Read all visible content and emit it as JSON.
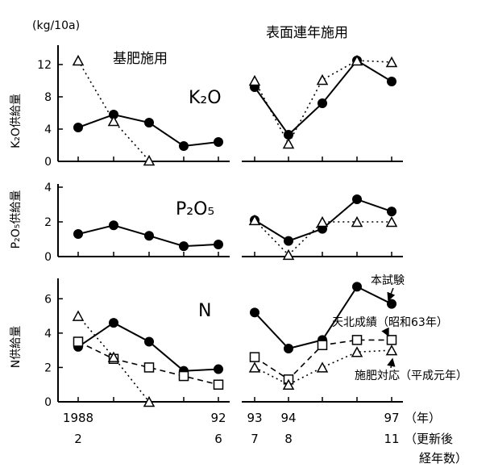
{
  "chart_data": [
    {
      "type": "line",
      "panel_label": "K₂O",
      "ylabel": "K₂O供給量",
      "unit": "(kg/10a)",
      "ylim": [
        0,
        14
      ],
      "yticks": [
        0,
        4,
        8,
        12
      ],
      "x_groups": [
        "基肥施用",
        "表面連年施用"
      ],
      "series": [
        {
          "marker": "filled-circle",
          "line": "solid",
          "segments": [
            [
              [
                1988,
                4.2
              ],
              [
                1989,
                5.8
              ],
              [
                1990,
                4.8
              ],
              [
                1991,
                1.9
              ],
              [
                1992,
                2.4
              ]
            ],
            [
              [
                1993,
                9.2
              ],
              [
                1994,
                3.3
              ],
              [
                1995,
                7.2
              ],
              [
                1996,
                12.5
              ],
              [
                1997,
                9.9
              ]
            ]
          ]
        },
        {
          "marker": "open-triangle",
          "line": "dotted",
          "segments": [
            [
              [
                1988,
                12.5
              ],
              [
                1989,
                5.0
              ],
              [
                1990,
                0.1
              ]
            ],
            [
              [
                1993,
                10.0
              ],
              [
                1994,
                2.2
              ],
              [
                1995,
                10.1
              ],
              [
                1996,
                12.5
              ],
              [
                1997,
                12.3
              ]
            ]
          ]
        }
      ]
    },
    {
      "type": "line",
      "panel_label": "P₂O₅",
      "ylabel": "P₂O₅供給量",
      "ylim": [
        0,
        4
      ],
      "yticks": [
        0,
        2,
        4
      ],
      "series": [
        {
          "marker": "filled-circle",
          "line": "solid",
          "segments": [
            [
              [
                1988,
                1.3
              ],
              [
                1989,
                1.8
              ],
              [
                1990,
                1.2
              ],
              [
                1991,
                0.6
              ],
              [
                1992,
                0.7
              ]
            ],
            [
              [
                1993,
                2.1
              ],
              [
                1994,
                0.9
              ],
              [
                1995,
                1.6
              ],
              [
                1996,
                3.3
              ],
              [
                1997,
                2.6
              ]
            ]
          ]
        },
        {
          "marker": "open-triangle",
          "line": "dotted",
          "segments": [
            [
              [
                1993,
                2.1
              ],
              [
                1994,
                0.1
              ],
              [
                1995,
                2.0
              ],
              [
                1996,
                2.0
              ],
              [
                1997,
                2.0
              ]
            ]
          ]
        }
      ]
    },
    {
      "type": "line",
      "panel_label": "N",
      "ylabel": "N供給量",
      "ylim": [
        0,
        7
      ],
      "yticks": [
        0,
        2,
        4,
        6
      ],
      "series": [
        {
          "name": "本試験",
          "marker": "filled-circle",
          "line": "solid",
          "segments": [
            [
              [
                1988,
                3.2
              ],
              [
                1989,
                4.6
              ],
              [
                1990,
                3.5
              ],
              [
                1991,
                1.8
              ],
              [
                1992,
                1.9
              ]
            ],
            [
              [
                1993,
                5.2
              ],
              [
                1994,
                3.1
              ],
              [
                1995,
                3.6
              ],
              [
                1996,
                6.7
              ],
              [
                1997,
                5.7
              ]
            ]
          ]
        },
        {
          "name": "天北成績（昭和63年）",
          "marker": "open-square",
          "line": "dashed",
          "segments": [
            [
              [
                1988,
                3.5
              ],
              [
                1989,
                2.5
              ],
              [
                1990,
                2.0
              ],
              [
                1991,
                1.5
              ],
              [
                1992,
                1.0
              ]
            ],
            [
              [
                1993,
                2.6
              ],
              [
                1994,
                1.3
              ],
              [
                1995,
                3.3
              ],
              [
                1996,
                3.6
              ],
              [
                1997,
                3.6
              ]
            ]
          ]
        },
        {
          "name": "施肥対応（平成元年）",
          "marker": "open-triangle",
          "line": "dotted",
          "segments": [
            [
              [
                1988,
                5.0
              ],
              [
                1989,
                2.6
              ],
              [
                1990,
                0.0
              ]
            ],
            [
              [
                1993,
                2.0
              ],
              [
                1994,
                1.0
              ],
              [
                1995,
                2.0
              ],
              [
                1996,
                2.9
              ],
              [
                1997,
                3.0
              ]
            ]
          ]
        }
      ]
    }
  ],
  "x_axis": {
    "years": [
      {
        "x": 1988,
        "label": "1988",
        "sub": "2"
      },
      {
        "x": 1992,
        "label": "92",
        "sub": "6"
      },
      {
        "x": 1993,
        "label": "93",
        "sub": "7"
      },
      {
        "x": 1994,
        "label": "94",
        "sub": "8"
      },
      {
        "x": 1997,
        "label": "97",
        "sub": "11"
      }
    ],
    "year_unit": "（年）",
    "sub_unit_line1": "（更新後",
    "sub_unit_line2": "経年数）"
  }
}
